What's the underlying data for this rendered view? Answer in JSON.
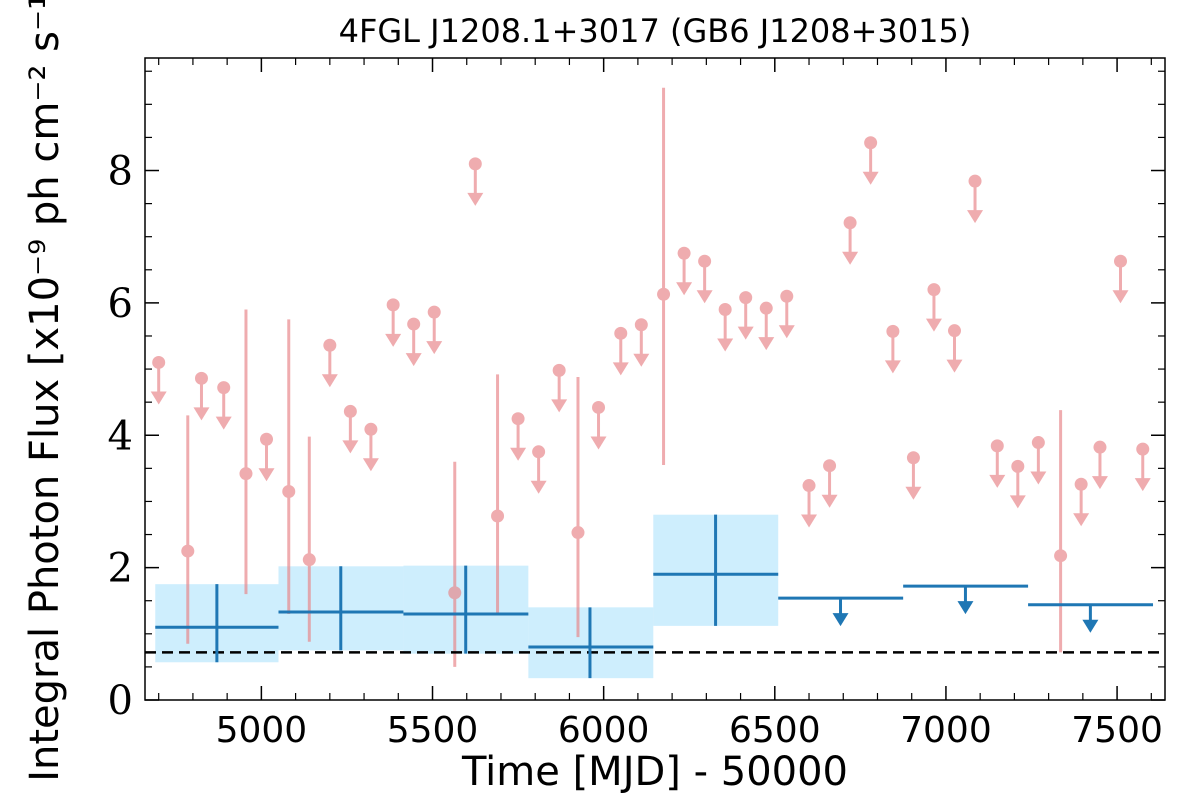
{
  "chart_data": {
    "type": "scatter",
    "title": "4FGL J1208.1+3017 (GB6 J1208+3015)",
    "xlabel": "Time [MJD] - 50000",
    "ylabel": "Integral Photon Flux [x10⁻⁹ ph cm⁻² s⁻¹]",
    "xlim": [
      4660,
      7640
    ],
    "ylim": [
      0,
      9.7
    ],
    "xticks": [
      5000,
      5500,
      6000,
      6500,
      7000,
      7500
    ],
    "yticks": [
      0,
      2,
      4,
      6,
      8
    ],
    "xtick_labels": [
      "5000",
      "5500",
      "6000",
      "6500",
      "7000",
      "7500"
    ],
    "ytick_labels": [
      "0",
      "2",
      "4",
      "6",
      "8"
    ],
    "reference_line": 0.72,
    "colors": {
      "fine": "#e8868a",
      "coarse": "#1f77b4",
      "coarse_fill": "#aee3fb",
      "reference": "#000000"
    },
    "series": [
      {
        "points": [
          {
            "x": 4785,
            "y": 2.25,
            "yerr_low": 0.85,
            "yerr_high": 4.3
          },
          {
            "x": 4955,
            "y": 3.42,
            "yerr_low": 1.6,
            "yerr_high": 5.9
          },
          {
            "x": 5080,
            "y": 3.15,
            "yerr_low": 1.3,
            "yerr_high": 5.75
          },
          {
            "x": 5140,
            "y": 2.12,
            "yerr_low": 0.88,
            "yerr_high": 3.98
          },
          {
            "x": 5565,
            "y": 1.62,
            "yerr_low": 0.5,
            "yerr_high": 3.6
          },
          {
            "x": 5690,
            "y": 2.78,
            "yerr_low": 1.3,
            "yerr_high": 4.92
          },
          {
            "x": 5925,
            "y": 2.53,
            "yerr_low": 0.95,
            "yerr_high": 4.88
          },
          {
            "x": 6175,
            "y": 6.13,
            "yerr_low": 3.55,
            "yerr_high": 9.25
          },
          {
            "x": 7335,
            "y": 2.18,
            "yerr_low": 0.72,
            "yerr_high": 4.38
          }
        ]
      },
      {
        "upper_limits": [
          {
            "x": 4700,
            "y": 5.1
          },
          {
            "x": 4825,
            "y": 4.86
          },
          {
            "x": 4890,
            "y": 4.72
          },
          {
            "x": 5015,
            "y": 3.94
          },
          {
            "x": 5200,
            "y": 5.36
          },
          {
            "x": 5260,
            "y": 4.36
          },
          {
            "x": 5320,
            "y": 4.09
          },
          {
            "x": 5385,
            "y": 5.97
          },
          {
            "x": 5445,
            "y": 5.68
          },
          {
            "x": 5505,
            "y": 5.86
          },
          {
            "x": 5625,
            "y": 8.1
          },
          {
            "x": 5750,
            "y": 4.25
          },
          {
            "x": 5810,
            "y": 3.75
          },
          {
            "x": 5870,
            "y": 4.98
          },
          {
            "x": 5985,
            "y": 4.42
          },
          {
            "x": 6050,
            "y": 5.54
          },
          {
            "x": 6110,
            "y": 5.67
          },
          {
            "x": 6235,
            "y": 6.75
          },
          {
            "x": 6295,
            "y": 6.63
          },
          {
            "x": 6355,
            "y": 5.9
          },
          {
            "x": 6415,
            "y": 6.08
          },
          {
            "x": 6475,
            "y": 5.92
          },
          {
            "x": 6535,
            "y": 6.1
          },
          {
            "x": 6600,
            "y": 3.24
          },
          {
            "x": 6660,
            "y": 3.54
          },
          {
            "x": 6720,
            "y": 7.21
          },
          {
            "x": 6780,
            "y": 8.42
          },
          {
            "x": 6845,
            "y": 5.57
          },
          {
            "x": 6905,
            "y": 3.66
          },
          {
            "x": 6965,
            "y": 6.2
          },
          {
            "x": 7025,
            "y": 5.58
          },
          {
            "x": 7085,
            "y": 7.84
          },
          {
            "x": 7150,
            "y": 3.84
          },
          {
            "x": 7210,
            "y": 3.53
          },
          {
            "x": 7270,
            "y": 3.89
          },
          {
            "x": 7395,
            "y": 3.26
          },
          {
            "x": 7450,
            "y": 3.82
          },
          {
            "x": 7510,
            "y": 6.63
          },
          {
            "x": 7575,
            "y": 3.79
          }
        ]
      },
      {
        "bins": [
          {
            "x0": 4690,
            "x1": 5050,
            "x": 4870,
            "y": 1.1,
            "ylo": 0.57,
            "yhi": 1.75
          },
          {
            "x0": 5050,
            "x1": 5415,
            "x": 5232,
            "y": 1.33,
            "ylo": 0.75,
            "yhi": 2.02
          },
          {
            "x0": 5415,
            "x1": 5780,
            "x": 5597,
            "y": 1.3,
            "ylo": 0.7,
            "yhi": 2.03
          },
          {
            "x0": 5780,
            "x1": 6145,
            "x": 5960,
            "y": 0.8,
            "ylo": 0.33,
            "yhi": 1.4
          },
          {
            "x0": 6145,
            "x1": 6510,
            "x": 6327,
            "y": 1.9,
            "ylo": 1.12,
            "yhi": 2.8
          }
        ],
        "upper_limits": [
          {
            "x0": 6510,
            "x1": 6875,
            "x": 6692,
            "y": 1.54
          },
          {
            "x0": 6875,
            "x1": 7240,
            "x": 7057,
            "y": 1.72
          },
          {
            "x0": 7240,
            "x1": 7605,
            "x": 7422,
            "y": 1.44
          }
        ]
      }
    ]
  }
}
